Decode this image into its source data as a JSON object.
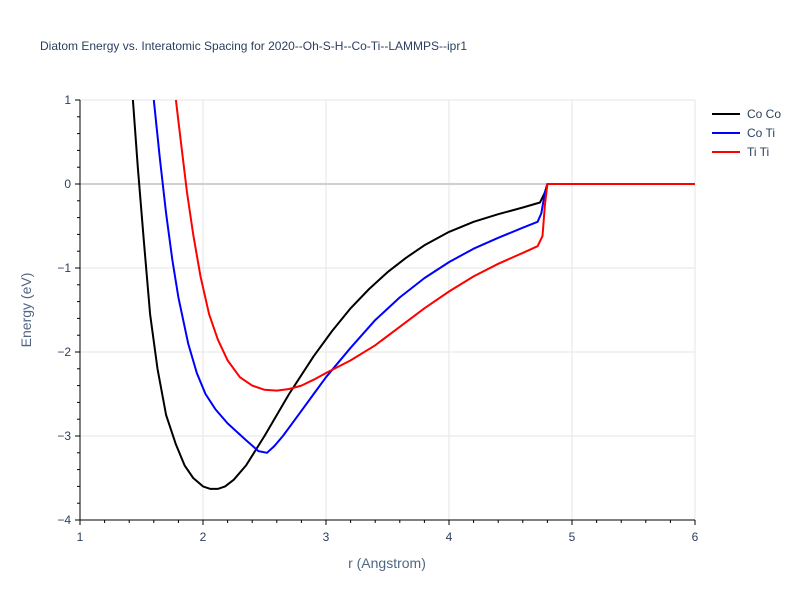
{
  "chart_data": {
    "type": "line",
    "title": "Diatom Energy vs. Interatomic Spacing for 2020--Oh-S-H--Co-Ti--LAMMPS--ipr1",
    "xlabel": "r (Angstrom)",
    "ylabel": "Energy (eV)",
    "xlim": [
      1,
      6
    ],
    "ylim": [
      -4,
      1
    ],
    "x_ticks": [
      1,
      2,
      3,
      4,
      5,
      6
    ],
    "x_tick_labels": [
      "1",
      "2",
      "3",
      "4",
      "5",
      "6"
    ],
    "y_ticks": [
      1,
      0,
      -1,
      -2,
      -3,
      -4
    ],
    "y_tick_labels": [
      "1",
      "0",
      "−1",
      "−2",
      "−3",
      "−4"
    ],
    "grid": true,
    "legend_position": "top-right",
    "series": [
      {
        "name": "Co Co",
        "color": "#000000",
        "x": [
          1.43,
          1.47,
          1.52,
          1.57,
          1.63,
          1.7,
          1.78,
          1.85,
          1.92,
          2.0,
          2.06,
          2.12,
          2.18,
          2.25,
          2.35,
          2.5,
          2.7,
          2.9,
          3.05,
          3.2,
          3.35,
          3.5,
          3.65,
          3.8,
          4.0,
          4.2,
          4.4,
          4.6,
          4.74,
          4.78,
          4.8,
          5.0,
          5.5,
          6.0
        ],
        "y": [
          1.0,
          0.2,
          -0.7,
          -1.55,
          -2.2,
          -2.75,
          -3.1,
          -3.35,
          -3.5,
          -3.6,
          -3.63,
          -3.63,
          -3.6,
          -3.52,
          -3.35,
          -3.0,
          -2.5,
          -2.05,
          -1.75,
          -1.48,
          -1.25,
          -1.05,
          -0.88,
          -0.73,
          -0.57,
          -0.45,
          -0.36,
          -0.28,
          -0.22,
          -0.1,
          0.0,
          0.0,
          0.0,
          0.0
        ]
      },
      {
        "name": "Co Ti",
        "color": "#0000ff",
        "x": [
          1.6,
          1.65,
          1.7,
          1.75,
          1.8,
          1.88,
          1.95,
          2.02,
          2.1,
          2.2,
          2.35,
          2.45,
          2.52,
          2.58,
          2.65,
          2.75,
          2.9,
          3.0,
          3.2,
          3.4,
          3.6,
          3.8,
          4.0,
          4.2,
          4.4,
          4.6,
          4.72,
          4.75,
          4.78,
          4.8,
          5.0,
          5.5,
          6.0
        ],
        "y": [
          1.0,
          0.3,
          -0.35,
          -0.9,
          -1.35,
          -1.9,
          -2.25,
          -2.5,
          -2.68,
          -2.85,
          -3.05,
          -3.18,
          -3.2,
          -3.12,
          -3.0,
          -2.8,
          -2.5,
          -2.3,
          -1.95,
          -1.62,
          -1.35,
          -1.12,
          -0.93,
          -0.77,
          -0.64,
          -0.52,
          -0.45,
          -0.35,
          -0.1,
          0.0,
          0.0,
          0.0,
          0.0
        ]
      },
      {
        "name": "Ti Ti",
        "color": "#ff0000",
        "x": [
          1.78,
          1.82,
          1.87,
          1.92,
          1.98,
          2.05,
          2.12,
          2.2,
          2.3,
          2.4,
          2.5,
          2.6,
          2.7,
          2.8,
          2.9,
          3.0,
          3.2,
          3.4,
          3.6,
          3.8,
          4.0,
          4.2,
          4.4,
          4.6,
          4.72,
          4.76,
          4.78,
          4.8,
          5.0,
          5.5,
          6.0
        ],
        "y": [
          1.0,
          0.5,
          -0.1,
          -0.6,
          -1.1,
          -1.55,
          -1.85,
          -2.1,
          -2.3,
          -2.4,
          -2.45,
          -2.46,
          -2.44,
          -2.4,
          -2.33,
          -2.25,
          -2.1,
          -1.92,
          -1.7,
          -1.48,
          -1.28,
          -1.1,
          -0.95,
          -0.82,
          -0.74,
          -0.62,
          -0.25,
          0.0,
          0.0,
          0.0,
          0.0
        ]
      }
    ]
  }
}
